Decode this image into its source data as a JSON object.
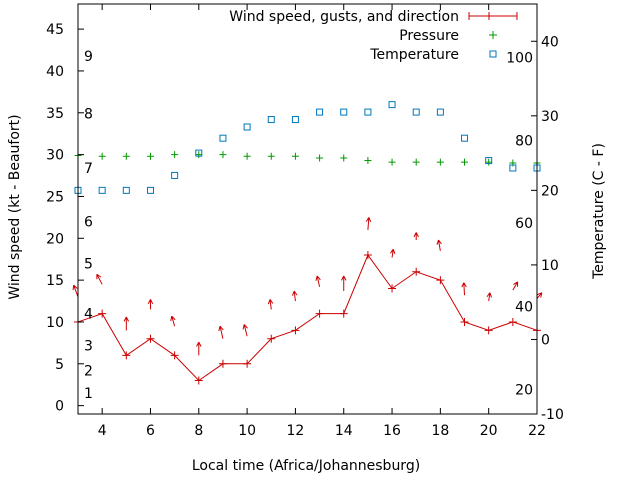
{
  "chart_data": {
    "type": "line",
    "title": "",
    "xlabel": "Local time (Africa/Johannesburg)",
    "ylabel_left": "Wind speed (kt - Beaufort)",
    "ylabel_right": "Temperature (C - F)",
    "x_range": [
      3,
      22
    ],
    "x_ticks": [
      4,
      6,
      8,
      10,
      12,
      14,
      16,
      18,
      20,
      22
    ],
    "y_left_range": [
      -1,
      48
    ],
    "y_left_ticks": [
      0,
      5,
      10,
      15,
      20,
      25,
      30,
      35,
      40,
      45
    ],
    "y_right_range": [
      -10,
      45
    ],
    "y_right_ticks": [
      -10,
      0,
      10,
      20,
      30,
      40
    ],
    "beaufort_labels": [
      {
        "label": "1",
        "value": 1.5
      },
      {
        "label": "2",
        "value": 4.2
      },
      {
        "label": "3",
        "value": 7.2
      },
      {
        "label": "4",
        "value": 11.0
      },
      {
        "label": "5",
        "value": 17.0
      },
      {
        "label": "6",
        "value": 22.0
      },
      {
        "label": "7",
        "value": 28.4
      },
      {
        "label": "8",
        "value": 34.9
      },
      {
        "label": "9",
        "value": 41.8
      }
    ],
    "fahrenheit_labels": [
      {
        "label": "20",
        "value": -6.7
      },
      {
        "label": "40",
        "value": 4.4
      },
      {
        "label": "60",
        "value": 15.6
      },
      {
        "label": "80",
        "value": 26.7
      },
      {
        "label": "100",
        "value": 37.8
      }
    ],
    "legend": [
      {
        "label": "Wind speed, gusts, and direction",
        "color": "#cc0000"
      },
      {
        "label": "Pressure",
        "color": "#009900"
      },
      {
        "label": "Temperature",
        "color": "#0077bb"
      }
    ],
    "series": [
      {
        "name": "Wind speed",
        "axis": "left",
        "color": "#cc0000",
        "x": [
          3,
          4,
          5,
          6,
          7,
          8,
          9,
          10,
          11,
          12,
          13,
          14,
          15,
          16,
          17,
          18,
          19,
          20,
          21,
          22
        ],
        "values": [
          10,
          11,
          6,
          8,
          6,
          3,
          5,
          5,
          8,
          9,
          11,
          11,
          18,
          14,
          16,
          15,
          10,
          9,
          10,
          9
        ]
      },
      {
        "name": "Gusts and direction",
        "axis": "left",
        "color": "#cc0000",
        "x": [
          3,
          4,
          5,
          6,
          7,
          8,
          9,
          10,
          11,
          12,
          13,
          14,
          15,
          16,
          17,
          18,
          19,
          20,
          21,
          22
        ],
        "base": [
          13,
          14.5,
          9,
          11.5,
          9.5,
          6,
          8,
          8.3,
          11.5,
          12.5,
          14.2,
          13.7,
          21,
          17.7,
          19.8,
          18.5,
          13.2,
          12.5,
          13.8,
          12.8
        ],
        "tip": [
          14.4,
          15.7,
          10.6,
          12.7,
          10.7,
          7.6,
          9.5,
          9.7,
          12.7,
          13.7,
          15.5,
          15.5,
          22.5,
          18.7,
          20.7,
          19.8,
          14.7,
          13.5,
          14.8,
          13.5
        ],
        "dx": [
          -0.18,
          -0.22,
          0,
          0,
          -0.12,
          0,
          -0.12,
          -0.12,
          -0.05,
          -0.05,
          -0.1,
          0,
          0.04,
          0.05,
          0,
          -0.08,
          -0.03,
          0.05,
          0.2,
          0.2
        ]
      },
      {
        "name": "Pressure",
        "axis": "left",
        "color": "#009900",
        "x": [
          3,
          4,
          5,
          6,
          7,
          8,
          9,
          10,
          11,
          12,
          13,
          14,
          15,
          16,
          17,
          18,
          19,
          20,
          21,
          22
        ],
        "values": [
          29.9,
          29.8,
          29.8,
          29.8,
          30,
          30,
          30,
          29.8,
          29.8,
          29.8,
          29.6,
          29.6,
          29.3,
          29.1,
          29.1,
          29.1,
          29.1,
          29.1,
          29,
          29
        ]
      },
      {
        "name": "Temperature",
        "axis": "right",
        "color": "#0077bb",
        "x": [
          3,
          4,
          5,
          6,
          7,
          8,
          9,
          10,
          11,
          12,
          13,
          14,
          15,
          16,
          17,
          18,
          19,
          20,
          21,
          22
        ],
        "values": [
          20,
          20,
          20,
          20,
          22,
          25,
          27,
          28.5,
          29.5,
          29.5,
          30.5,
          30.5,
          30.5,
          31.5,
          30.5,
          30.5,
          27,
          24,
          23,
          23
        ]
      }
    ]
  }
}
